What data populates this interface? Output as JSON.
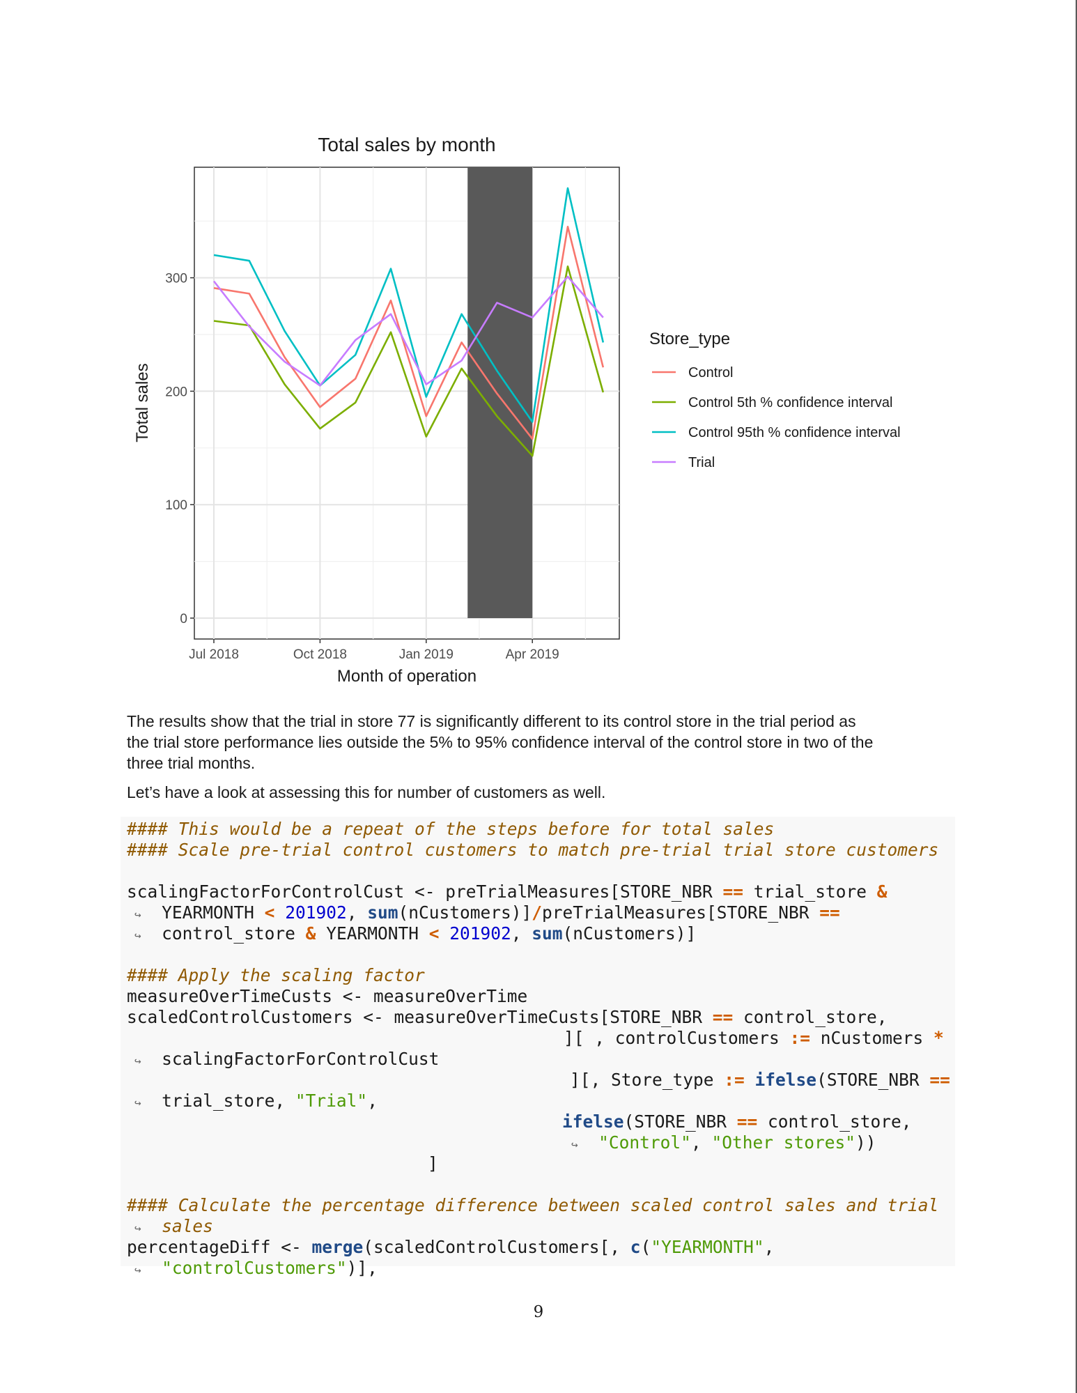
{
  "chart_data": {
    "type": "line",
    "title": "Total sales by month",
    "xlabel": "Month of operation",
    "ylabel": "Total sales",
    "x_ticks": [
      {
        "label": "Jul 2018",
        "month": "2018-07"
      },
      {
        "label": "Oct 2018",
        "month": "2018-10"
      },
      {
        "label": "Jan 2019",
        "month": "2019-01"
      },
      {
        "label": "Apr 2019",
        "month": "2019-04"
      }
    ],
    "y_ticks": [
      0,
      100,
      200,
      300
    ],
    "ylim": [
      0,
      395
    ],
    "xlim": [
      "2018-07",
      "2019-06"
    ],
    "months": [
      "2018-07",
      "2018-08",
      "2018-09",
      "2018-10",
      "2018-11",
      "2018-12",
      "2019-01",
      "2019-02",
      "2019-03",
      "2019-04",
      "2019-05",
      "2019-06"
    ],
    "trial_period": {
      "start": "2019-02",
      "end": "2019-04",
      "color": "#595959"
    },
    "grid": true,
    "legend": {
      "title": "Store_type",
      "position": "right"
    },
    "series": [
      {
        "name": "Control",
        "color": "#F8766D",
        "values": [
          291,
          286,
          230,
          186,
          211,
          280,
          178,
          243,
          198,
          158,
          345,
          221
        ]
      },
      {
        "name": "Control 5th % confidence interval",
        "color": "#7CAE00",
        "values": [
          262,
          258,
          206,
          167,
          190,
          252,
          160,
          220,
          178,
          143,
          310,
          199
        ]
      },
      {
        "name": "Control 95th % confidence interval",
        "color": "#00BFC4",
        "values": [
          320,
          315,
          253,
          205,
          232,
          308,
          195,
          268,
          218,
          173,
          379,
          243
        ]
      },
      {
        "name": "Trial",
        "color": "#C77CFF",
        "values": [
          297,
          257,
          226,
          205,
          245,
          268,
          206,
          227,
          278,
          265,
          301,
          265
        ]
      }
    ]
  },
  "prose": {
    "p1_lines": [
      "The results show that the trial in store 77 is significantly different to its control store in the trial period as",
      "the trial store performance lies outside the 5% to 95% confidence interval of the control store in two of the",
      "three trial months."
    ],
    "p2": "Let’s have a look at assessing this for number of customers as well."
  },
  "code": {
    "continuation_glyph": "↪",
    "tokens": {
      "c1": "#### This would be a repeat of the steps before for total sales",
      "c2": "#### Scale pre-trial control customers to match pre-trial trial store customers",
      "l4a": "scalingFactorForControlCust <- preTrialMeasures[STORE_NBR ",
      "eq": "==",
      "amp": "&",
      "lt": "<",
      "star": "*",
      "slash": "/",
      "assign": ":=",
      "l4b": " trial_store ",
      "l5a": "YEARMONTH ",
      "n201902": "201902",
      "comma_sp": ", ",
      "sum": "sum",
      "l5c": "(nCustomers)]",
      "l5d": "preTrialMeasures[STORE_NBR ",
      "l6a": "control_store ",
      "l6b": " YEARMONTH ",
      "l6c": "(nCustomers)]",
      "c3": "#### Apply the scaling factor",
      "l9": "measureOverTimeCusts <- measureOverTime",
      "l10a": "scaledControlCustomers <- measureOverTimeCusts[STORE_NBR ",
      "l10b": " control_store,",
      "l11a": "][ , controlCustomers ",
      "l11b": " nCustomers ",
      "l12": "scalingFactorForControlCust",
      "l13a": "][, Store_type ",
      "ifelse": "ifelse",
      "l13b": "(STORE_NBR ",
      "l14a": "trial_store, ",
      "s_trial": "\"Trial\"",
      "comma": ",",
      "l15b": " control_store,",
      "s_control": "\"Control\"",
      "s_other": "\"Other stores\"",
      "close2": "))",
      "bracket": "]",
      "c4a": "#### Calculate the percentage difference between scaled control sales and trial",
      "c4b": "sales",
      "l20a": "percentageDiff <- ",
      "merge": "merge",
      "l20b": "(scaledControlCustomers[, ",
      "cfn": "c",
      "l20c": "(",
      "s_ym": "\"YEARMONTH\"",
      "s_cc": "\"controlCustomers\"",
      "l21b": ")],"
    }
  },
  "page_number": "9"
}
